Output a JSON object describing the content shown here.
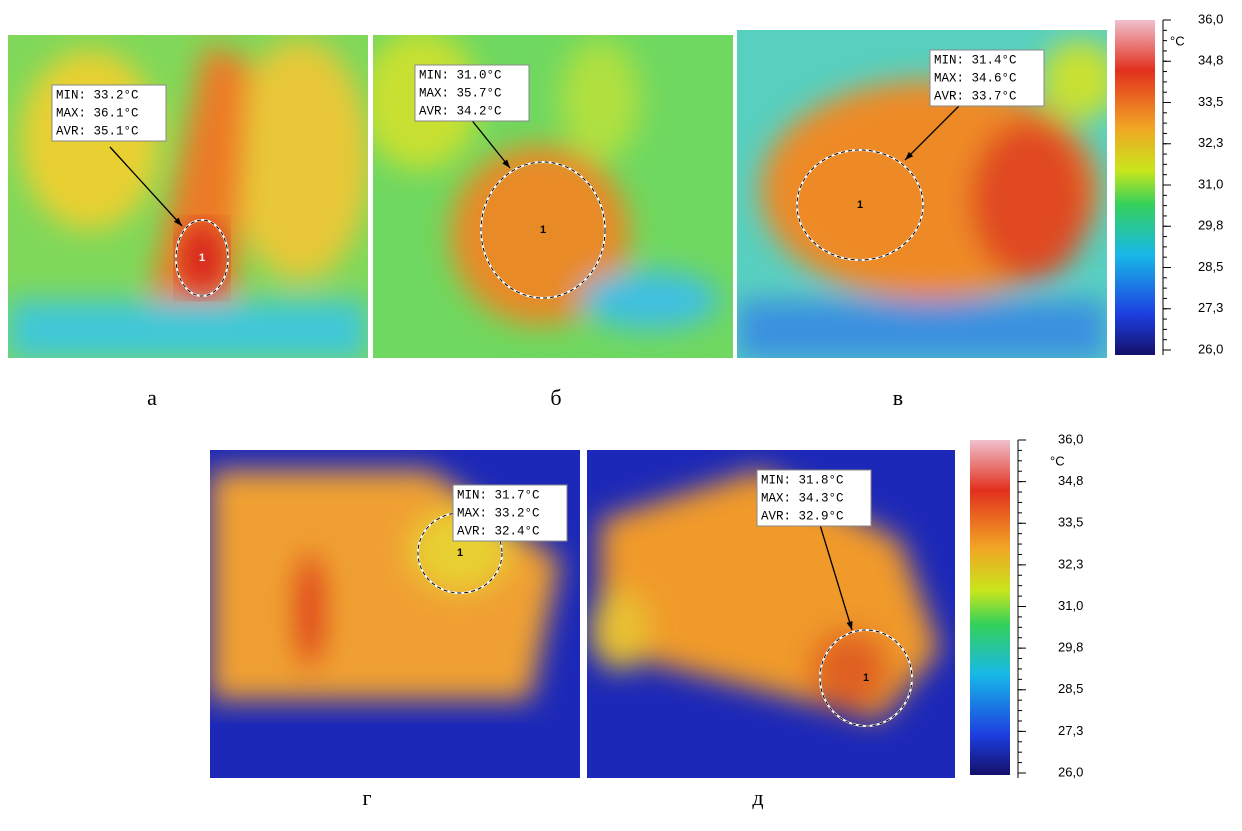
{
  "panels": [
    {
      "label": "а",
      "min": "MIN: 33.2°C",
      "max": "MAX: 36.1°C",
      "avr": "AVR: 35.1°C",
      "marker": "1"
    },
    {
      "label": "б",
      "min": "MIN: 31.0°C",
      "max": "MAX: 35.7°C",
      "avr": "AVR: 34.2°C",
      "marker": "1"
    },
    {
      "label": "в",
      "min": "MIN: 31.4°C",
      "max": "MAX: 34.6°C",
      "avr": "AVR: 33.7°C",
      "marker": "1"
    },
    {
      "label": "г",
      "min": "MIN: 31.7°C",
      "max": "MAX: 33.2°C",
      "avr": "AVR: 32.4°C",
      "marker": "1"
    },
    {
      "label": "д",
      "min": "MIN: 31.8°C",
      "max": "MAX: 34.3°C",
      "avr": "AVR: 32.9°C",
      "marker": "1"
    }
  ],
  "colorbars": [
    {
      "unit": "°C",
      "ticks": [
        "36,0",
        "34,8",
        "33,5",
        "32,3",
        "31,0",
        "29,8",
        "28,5",
        "27,3",
        "26,0"
      ]
    },
    {
      "unit": "°C",
      "ticks": [
        "36,0",
        "34,8",
        "33,5",
        "32,3",
        "31,0",
        "29,8",
        "28,5",
        "27,3",
        "26,0"
      ]
    }
  ]
}
